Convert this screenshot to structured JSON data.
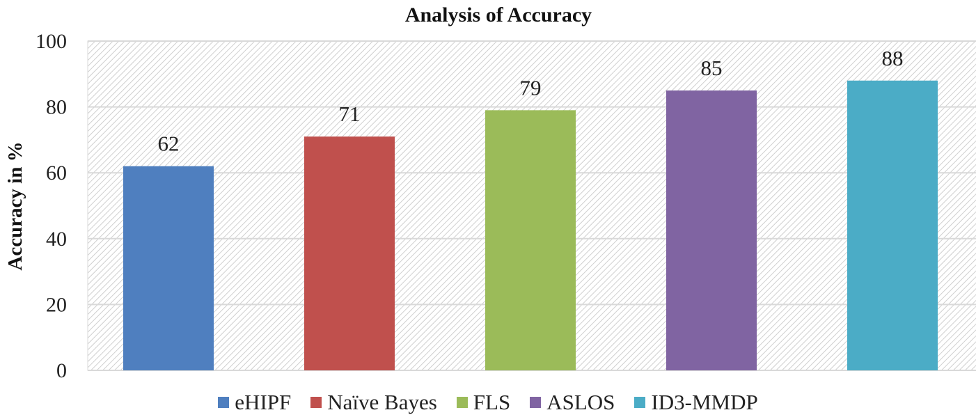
{
  "chart_data": {
    "type": "bar",
    "title": "Analysis of Accuracy",
    "xlabel": "",
    "ylabel": "Accuracy in %",
    "ylim": [
      0,
      100
    ],
    "yticks": [
      0,
      20,
      40,
      60,
      80,
      100
    ],
    "grid": true,
    "legend_position": "bottom",
    "categories": [
      "eHIPF",
      "Naïve Bayes",
      "FLS",
      "ASLOS",
      "ID3-MMDP"
    ],
    "values": [
      62,
      71,
      79,
      85,
      88
    ],
    "colors": [
      "#4f7fbf",
      "#c0504d",
      "#9bbb59",
      "#8064a2",
      "#4bacc6"
    ]
  }
}
